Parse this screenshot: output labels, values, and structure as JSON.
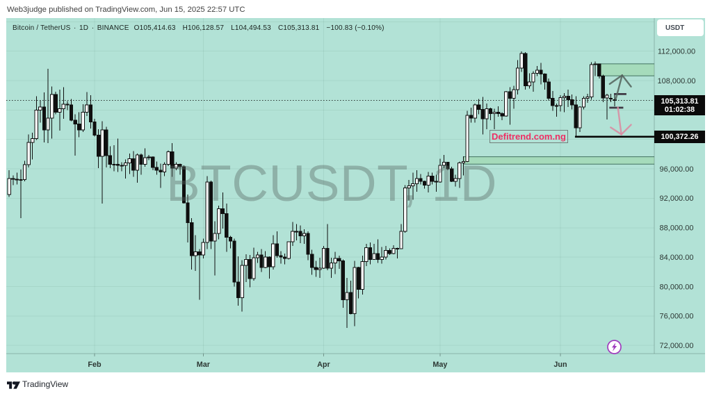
{
  "page": {
    "publish_line": "Web3judge published on TradingView.com, Jun 15, 2025 22:57 UTC",
    "footer_brand": "TradingView"
  },
  "toolbar": {
    "currency_button": "USDT"
  },
  "legend": {
    "symbol_title": "Bitcoin / TetherUS",
    "separator": "·",
    "interval": "1D",
    "exchange": "BINANCE",
    "ohlc": {
      "open_label": "O",
      "open": "105,414.63",
      "high_label": "H",
      "high": "106,128.57",
      "low_label": "L",
      "low": "104,494.53",
      "close_label": "C",
      "close": "105,313.81"
    },
    "change": "−100.83 (−0.10%)"
  },
  "watermark": "BTCUSDT, 1D",
  "price_scale": {
    "last_price": 105313.81,
    "last_price_label": "105,313.81",
    "countdown": "01:02:38",
    "ticks": [
      {
        "price": 112000,
        "label": "112,000.00"
      },
      {
        "price": 108000,
        "label": "108,000.00"
      },
      {
        "price": 96000,
        "label": "96,000.00"
      },
      {
        "price": 92000,
        "label": "92,000.00"
      },
      {
        "price": 88000,
        "label": "88,000.00"
      },
      {
        "price": 84000,
        "label": "84,000.00"
      },
      {
        "price": 80000,
        "label": "80,000.00"
      },
      {
        "price": 76000,
        "label": "76,000.00"
      },
      {
        "price": 72000,
        "label": "72,000.00"
      }
    ]
  },
  "time_scale": {
    "months": [
      {
        "label": "Feb",
        "bar": 22
      },
      {
        "label": "Mar",
        "bar": 50
      },
      {
        "label": "Apr",
        "bar": 81
      },
      {
        "label": "May",
        "bar": 111
      },
      {
        "label": "Jun",
        "bar": 142
      }
    ]
  },
  "annotations": {
    "defitrend_label": "Defitrend.com.ng",
    "support_line": {
      "price": 100372.26,
      "label": "100,372.26",
      "from_bar": 145.75
    },
    "zones": [
      {
        "price_top": 110280,
        "price_bottom": 108650,
        "from_bar": 151.6
      },
      {
        "price_top": 97650,
        "price_bottom": 96650,
        "from_bar": 117.1
      }
    ],
    "segments": [
      {
        "price": 106171,
        "from_bar": 155.8,
        "to_bar": 159.0
      },
      {
        "price": 104320,
        "from_bar": 154.6,
        "to_bar": 158.2
      }
    ],
    "arrows": [
      {
        "dir": "up",
        "color": "#55655f",
        "tail": {
          "bar": 156.25,
          "price": 105455
        },
        "tip": {
          "bar": 157.9,
          "price": 108732
        },
        "head_left": {
          "bar": 154.7,
          "price": 107542
        },
        "head_right": {
          "bar": 160.2,
          "price": 107183
        }
      },
      {
        "dir": "down",
        "color": "#d98ba2",
        "tail": {
          "bar": 156.8,
          "price": 104379
        },
        "tip": {
          "bar": 157.7,
          "price": 100686
        },
        "head_left": {
          "bar": 154.95,
          "price": 101640
        },
        "head_right": {
          "bar": 160.2,
          "price": 101999
        }
      }
    ]
  },
  "colors": {
    "chart_background": "#b2e2d6",
    "grid_line": "rgba(40,96,82,0.09)",
    "candle_up_fill": "#fdfdfd",
    "candle_down_fill": "#0f0f0f",
    "candle_border": "#0f0f0f",
    "zone_fill": "#a4dab9",
    "zone_border": "#2f5f4e",
    "support_line": "#050505",
    "price_label_bg": "#0a0a0a",
    "defitrend_text": "#ee2e63",
    "arrow_up": "#55655f",
    "arrow_down": "#d98ba2",
    "segment": "#3f3944",
    "lightning_purple": "#a43fc0",
    "axis_text": "#2c3733"
  },
  "chart_data": {
    "type": "candlestick",
    "title": "BTCUSDT, 1D",
    "symbol": "BTCUSDT",
    "interval": "1D",
    "start_date": "2025-01-10",
    "ylim": [
      70882,
      116506
    ],
    "grid_step": 4000,
    "legend_position": "top-left",
    "candles": [
      [
        92500,
        95800,
        92200,
        94700
      ],
      [
        94700,
        95100,
        93800,
        94600
      ],
      [
        94600,
        95500,
        93900,
        94500
      ],
      [
        94500,
        95900,
        89300,
        94550
      ],
      [
        94550,
        97100,
        94300,
        96560
      ],
      [
        96560,
        100700,
        96200,
        99600
      ],
      [
        99600,
        100900,
        97300,
        100100
      ],
      [
        100100,
        105900,
        99950,
        104000
      ],
      [
        104000,
        105300,
        102300,
        104400
      ],
      [
        104400,
        106400,
        99600,
        101300
      ],
      [
        101300,
        109600,
        99500,
        102900
      ],
      [
        102900,
        107200,
        100100,
        106100
      ],
      [
        106100,
        106500,
        103400,
        103700
      ],
      [
        103700,
        106800,
        101200,
        104200
      ],
      [
        104200,
        107100,
        102800,
        104800
      ],
      [
        104800,
        105200,
        104000,
        104700
      ],
      [
        104700,
        105500,
        102500,
        102600
      ],
      [
        102600,
        103400,
        97800,
        102100
      ],
      [
        102100,
        103700,
        100300,
        101300
      ],
      [
        101300,
        104800,
        101000,
        103700
      ],
      [
        103700,
        106450,
        103200,
        104700
      ],
      [
        104700,
        106000,
        101500,
        102400
      ],
      [
        102400,
        102800,
        100400,
        100600
      ],
      [
        100600,
        101400,
        96100,
        97700
      ],
      [
        97700,
        102500,
        91300,
        101300
      ],
      [
        101300,
        101700,
        96200,
        97800
      ],
      [
        97800,
        99100,
        96100,
        96600
      ],
      [
        96600,
        99200,
        95700,
        96600
      ],
      [
        96600,
        100100,
        95600,
        96500
      ],
      [
        96500,
        96900,
        95700,
        96500
      ],
      [
        96500,
        97300,
        94700,
        96800
      ],
      [
        96800,
        98100,
        95300,
        97400
      ],
      [
        97400,
        98400,
        94900,
        95800
      ],
      [
        95800,
        98100,
        94100,
        97900
      ],
      [
        97900,
        98100,
        95200,
        96600
      ],
      [
        96600,
        98800,
        96300,
        97500
      ],
      [
        97500,
        97900,
        97200,
        97600
      ],
      [
        97600,
        97700,
        95800,
        96200
      ],
      [
        96200,
        97000,
        95200,
        95800
      ],
      [
        95800,
        96700,
        93400,
        95600
      ],
      [
        95600,
        96900,
        95000,
        96600
      ],
      [
        96600,
        98500,
        96400,
        98300
      ],
      [
        98300,
        99500,
        94900,
        96100
      ],
      [
        96100,
        96900,
        95800,
        96600
      ],
      [
        96600,
        96700,
        95200,
        96300
      ],
      [
        96300,
        96500,
        91300,
        91400
      ],
      [
        91400,
        92500,
        86000,
        88700
      ],
      [
        88700,
        89300,
        82300,
        84200
      ],
      [
        84200,
        87000,
        82100,
        84700
      ],
      [
        84700,
        85100,
        78200,
        84300
      ],
      [
        84300,
        86500,
        83800,
        86000
      ],
      [
        86000,
        95000,
        85100,
        94200
      ],
      [
        94200,
        94400,
        85100,
        86200
      ],
      [
        86200,
        88900,
        81500,
        87200
      ],
      [
        87200,
        91000,
        86400,
        90600
      ],
      [
        90600,
        92800,
        87900,
        89900
      ],
      [
        89900,
        91300,
        84700,
        86700
      ],
      [
        86700,
        86900,
        85200,
        86200
      ],
      [
        86200,
        86500,
        80000,
        80600
      ],
      [
        80600,
        84100,
        77400,
        78500
      ],
      [
        78500,
        83600,
        76600,
        82900
      ],
      [
        82900,
        84400,
        80600,
        83700
      ],
      [
        83700,
        84300,
        79900,
        81100
      ],
      [
        81100,
        85300,
        80800,
        83900
      ],
      [
        83900,
        84700,
        83200,
        84300
      ],
      [
        84300,
        85100,
        82000,
        82600
      ],
      [
        82600,
        84800,
        82500,
        84000
      ],
      [
        84000,
        84100,
        81100,
        82700
      ],
      [
        82700,
        87000,
        82300,
        85800
      ],
      [
        85800,
        87500,
        83900,
        84200
      ],
      [
        84200,
        84800,
        83100,
        84000
      ],
      [
        84000,
        84500,
        83000,
        83800
      ],
      [
        83800,
        86100,
        83700,
        86100
      ],
      [
        86100,
        88800,
        85500,
        87500
      ],
      [
        87500,
        88500,
        86300,
        87500
      ],
      [
        87500,
        88300,
        85900,
        86900
      ],
      [
        86900,
        87800,
        85800,
        87200
      ],
      [
        87200,
        87500,
        83600,
        84400
      ],
      [
        84400,
        85000,
        81600,
        82600
      ],
      [
        82600,
        83500,
        81300,
        82300
      ],
      [
        82300,
        83900,
        81200,
        82500
      ],
      [
        82500,
        85500,
        82400,
        85200
      ],
      [
        85200,
        88500,
        82200,
        82500
      ],
      [
        82500,
        83900,
        81200,
        83200
      ],
      [
        83200,
        84700,
        81700,
        83800
      ],
      [
        83800,
        84200,
        82400,
        83500
      ],
      [
        83500,
        83700,
        77100,
        78200
      ],
      [
        78200,
        81200,
        74400,
        79200
      ],
      [
        79200,
        80800,
        76200,
        76300
      ],
      [
        76300,
        83500,
        74600,
        82600
      ],
      [
        82600,
        82700,
        78400,
        79600
      ],
      [
        79600,
        84200,
        78900,
        83400
      ],
      [
        83400,
        85800,
        82800,
        85300
      ],
      [
        85300,
        86000,
        83000,
        83700
      ],
      [
        83700,
        85800,
        83700,
        84500
      ],
      [
        84500,
        86400,
        83200,
        83700
      ],
      [
        83700,
        85400,
        83100,
        84000
      ],
      [
        84000,
        85500,
        83700,
        84900
      ],
      [
        84900,
        85200,
        84300,
        84500
      ],
      [
        84500,
        85600,
        84400,
        85200
      ],
      [
        85200,
        85300,
        83800,
        85150
      ],
      [
        85150,
        88500,
        85100,
        87500
      ],
      [
        87500,
        93800,
        87300,
        93400
      ],
      [
        93400,
        94500,
        91700,
        93700
      ],
      [
        93700,
        95500,
        91800,
        94000
      ],
      [
        94000,
        95800,
        92900,
        94700
      ],
      [
        94700,
        95300,
        93900,
        94300
      ],
      [
        94300,
        94400,
        93300,
        93800
      ],
      [
        93800,
        95600,
        92800,
        95000
      ],
      [
        95000,
        95500,
        93900,
        94300
      ],
      [
        94300,
        95200,
        92900,
        94200
      ],
      [
        94200,
        97400,
        94100,
        96500
      ],
      [
        96500,
        97900,
        96100,
        96900
      ],
      [
        96900,
        96950,
        95800,
        96000
      ],
      [
        96000,
        96300,
        94200,
        94300
      ],
      [
        94300,
        95200,
        93600,
        94700
      ],
      [
        94700,
        97000,
        93400,
        96800
      ],
      [
        96800,
        97700,
        95100,
        97000
      ],
      [
        97000,
        103900,
        96900,
        103300
      ],
      [
        103300,
        104300,
        102300,
        102900
      ],
      [
        102900,
        104900,
        102300,
        104700
      ],
      [
        104700,
        105500,
        103400,
        104100
      ],
      [
        104100,
        105800,
        100700,
        102800
      ],
      [
        102800,
        104900,
        101400,
        104200
      ],
      [
        104200,
        104300,
        102600,
        103500
      ],
      [
        103500,
        104200,
        101400,
        103700
      ],
      [
        103700,
        104500,
        103100,
        103500
      ],
      [
        103500,
        103700,
        102600,
        103200
      ],
      [
        103200,
        106600,
        103100,
        106500
      ],
      [
        106500,
        107100,
        102000,
        105600
      ],
      [
        105600,
        107300,
        104200,
        106800
      ],
      [
        106800,
        110800,
        106100,
        109700
      ],
      [
        109700,
        111980,
        109200,
        111700
      ],
      [
        111700,
        111900,
        106800,
        107300
      ],
      [
        107300,
        109000,
        106900,
        107800
      ],
      [
        107800,
        109300,
        106500,
        109000
      ],
      [
        109000,
        110000,
        108600,
        109400
      ],
      [
        109400,
        110400,
        107500,
        108900
      ],
      [
        108900,
        109000,
        106800,
        107800
      ],
      [
        107800,
        108300,
        105300,
        105600
      ],
      [
        105600,
        106600,
        103900,
        104600
      ],
      [
        104600,
        104900,
        103100,
        104600
      ],
      [
        104600,
        106000,
        103800,
        105700
      ],
      [
        105700,
        106300,
        103700,
        105900
      ],
      [
        105900,
        106800,
        104400,
        105400
      ],
      [
        105400,
        106100,
        104100,
        104700
      ],
      [
        104700,
        105900,
        100400,
        101600
      ],
      [
        101600,
        104500,
        101000,
        104400
      ],
      [
        104400,
        105900,
        104100,
        105600
      ],
      [
        105600,
        106200,
        105000,
        105800
      ],
      [
        105800,
        110500,
        105400,
        110200
      ],
      [
        110200,
        110600,
        108600,
        110250
      ],
      [
        110250,
        110300,
        108300,
        108600
      ],
      [
        108600,
        108800,
        105100,
        105650
      ],
      [
        105650,
        106200,
        102700,
        106000
      ],
      [
        105500,
        106200,
        105100,
        105600
      ],
      [
        105414.63,
        106128.57,
        104494.53,
        105313.81
      ]
    ]
  }
}
